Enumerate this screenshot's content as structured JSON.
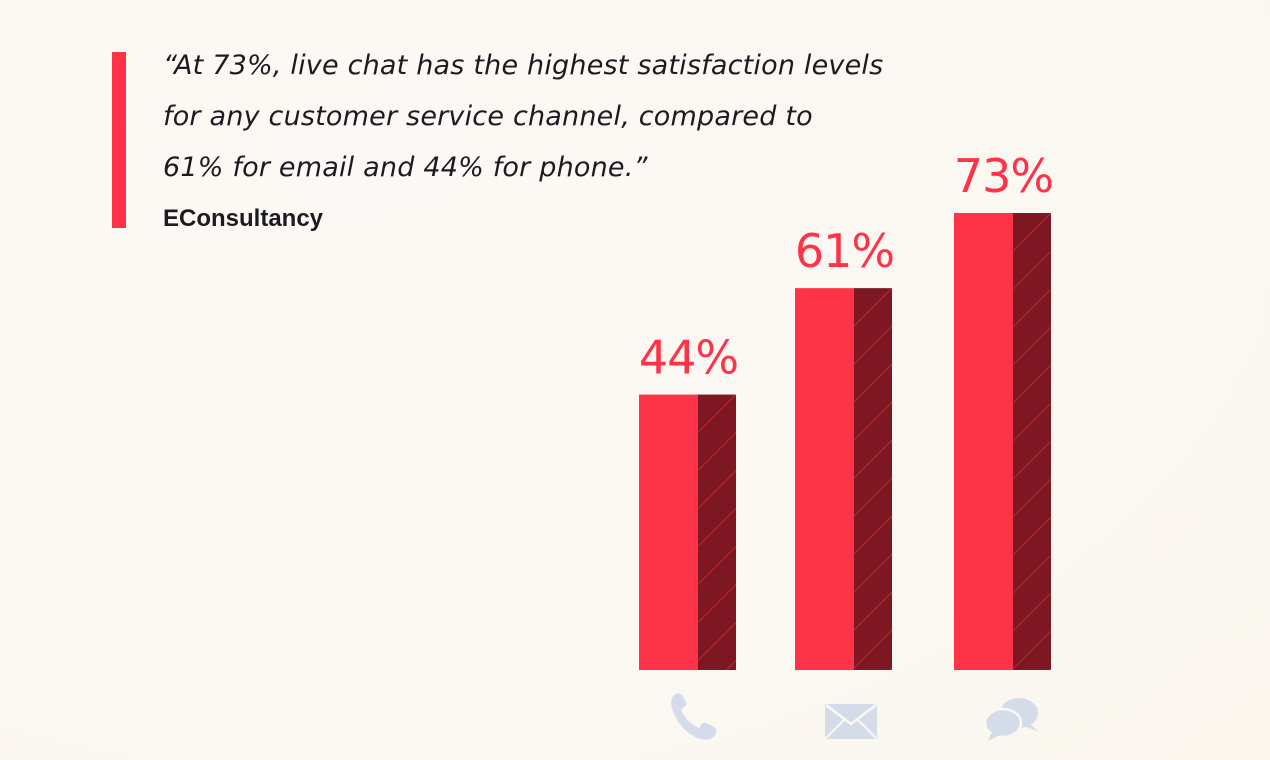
{
  "quote": {
    "lines": [
      "“At 73%, live chat has the highest satisfaction levels",
      "for any customer service channel, compared to",
      "61% for email and 44% for phone.”"
    ],
    "source": "EConsultancy",
    "accent_color": "#ff3347"
  },
  "chart_data": {
    "type": "bar",
    "title": "",
    "xlabel": "",
    "ylabel": "",
    "ylim": [
      0,
      100
    ],
    "grid": false,
    "categories": [
      "phone",
      "email",
      "live chat"
    ],
    "values": [
      44,
      61,
      73
    ],
    "value_labels": [
      "44%",
      "61%",
      "73%"
    ],
    "category_icons": [
      "phone-icon",
      "envelope-icon",
      "chat-bubbles-icon"
    ],
    "colors": {
      "bar_front": "#ff3347",
      "bar_side": "#7d1721",
      "bar_hatch": "#ff3347",
      "label": "#ff3347",
      "icon": "#d5dce9",
      "baseline": "#2a2a2a"
    }
  }
}
